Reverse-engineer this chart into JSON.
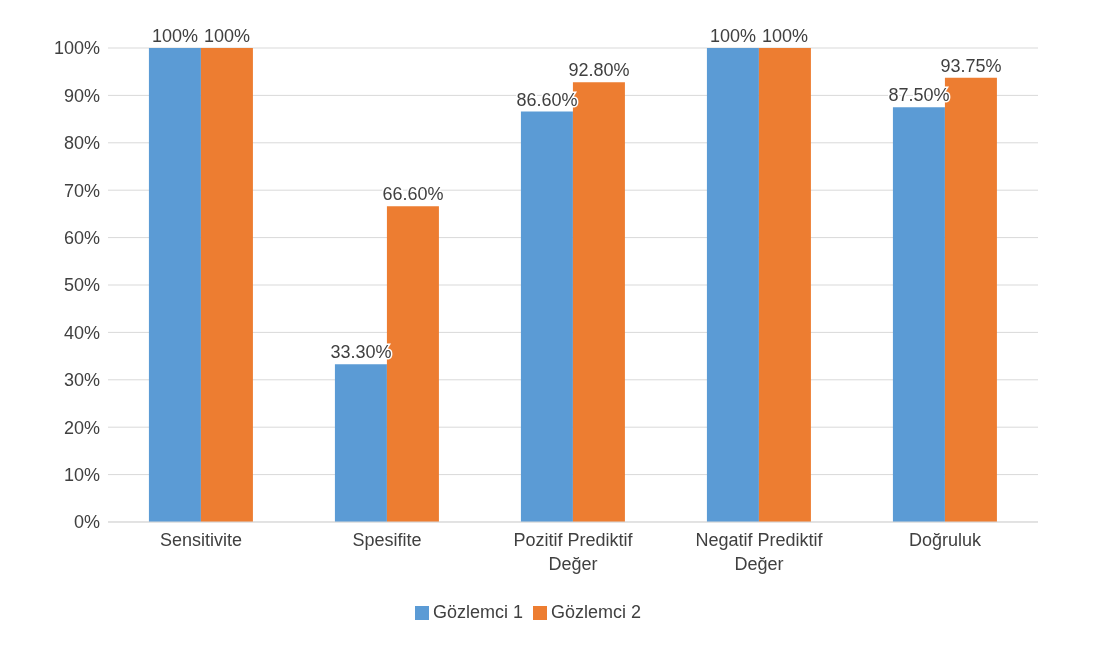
{
  "chart_data": {
    "type": "bar",
    "categories": [
      "Sensitivite",
      "Spesifite",
      "Pozitif Prediktif Değer",
      "Negatif Prediktif Değer",
      "Doğruluk"
    ],
    "series": [
      {
        "name": "Gözlemci 1",
        "color": "#5b9bd5",
        "values": [
          100,
          33.3,
          86.6,
          100,
          87.5
        ],
        "value_labels": [
          "100%",
          "33.30%",
          "86.60%",
          "100%",
          "87.50%"
        ]
      },
      {
        "name": "Gözlemci 2",
        "color": "#ed7d31",
        "values": [
          100,
          66.6,
          92.8,
          100,
          93.75
        ],
        "value_labels": [
          "100%",
          "66.60%",
          "92.80%",
          "100%",
          "93.75%"
        ]
      }
    ],
    "ylim": [
      0,
      100
    ],
    "yticks": [
      {
        "value": 0,
        "label": "0%"
      },
      {
        "value": 10,
        "label": "10%"
      },
      {
        "value": 20,
        "label": "20%"
      },
      {
        "value": 30,
        "label": "30%"
      },
      {
        "value": 40,
        "label": "40%"
      },
      {
        "value": 50,
        "label": "50%"
      },
      {
        "value": 60,
        "label": "60%"
      },
      {
        "value": 70,
        "label": "70%"
      },
      {
        "value": 80,
        "label": "80%"
      },
      {
        "value": 90,
        "label": "90%"
      },
      {
        "value": 100,
        "label": "100%"
      }
    ],
    "grid": "y",
    "legend": "bottom"
  }
}
